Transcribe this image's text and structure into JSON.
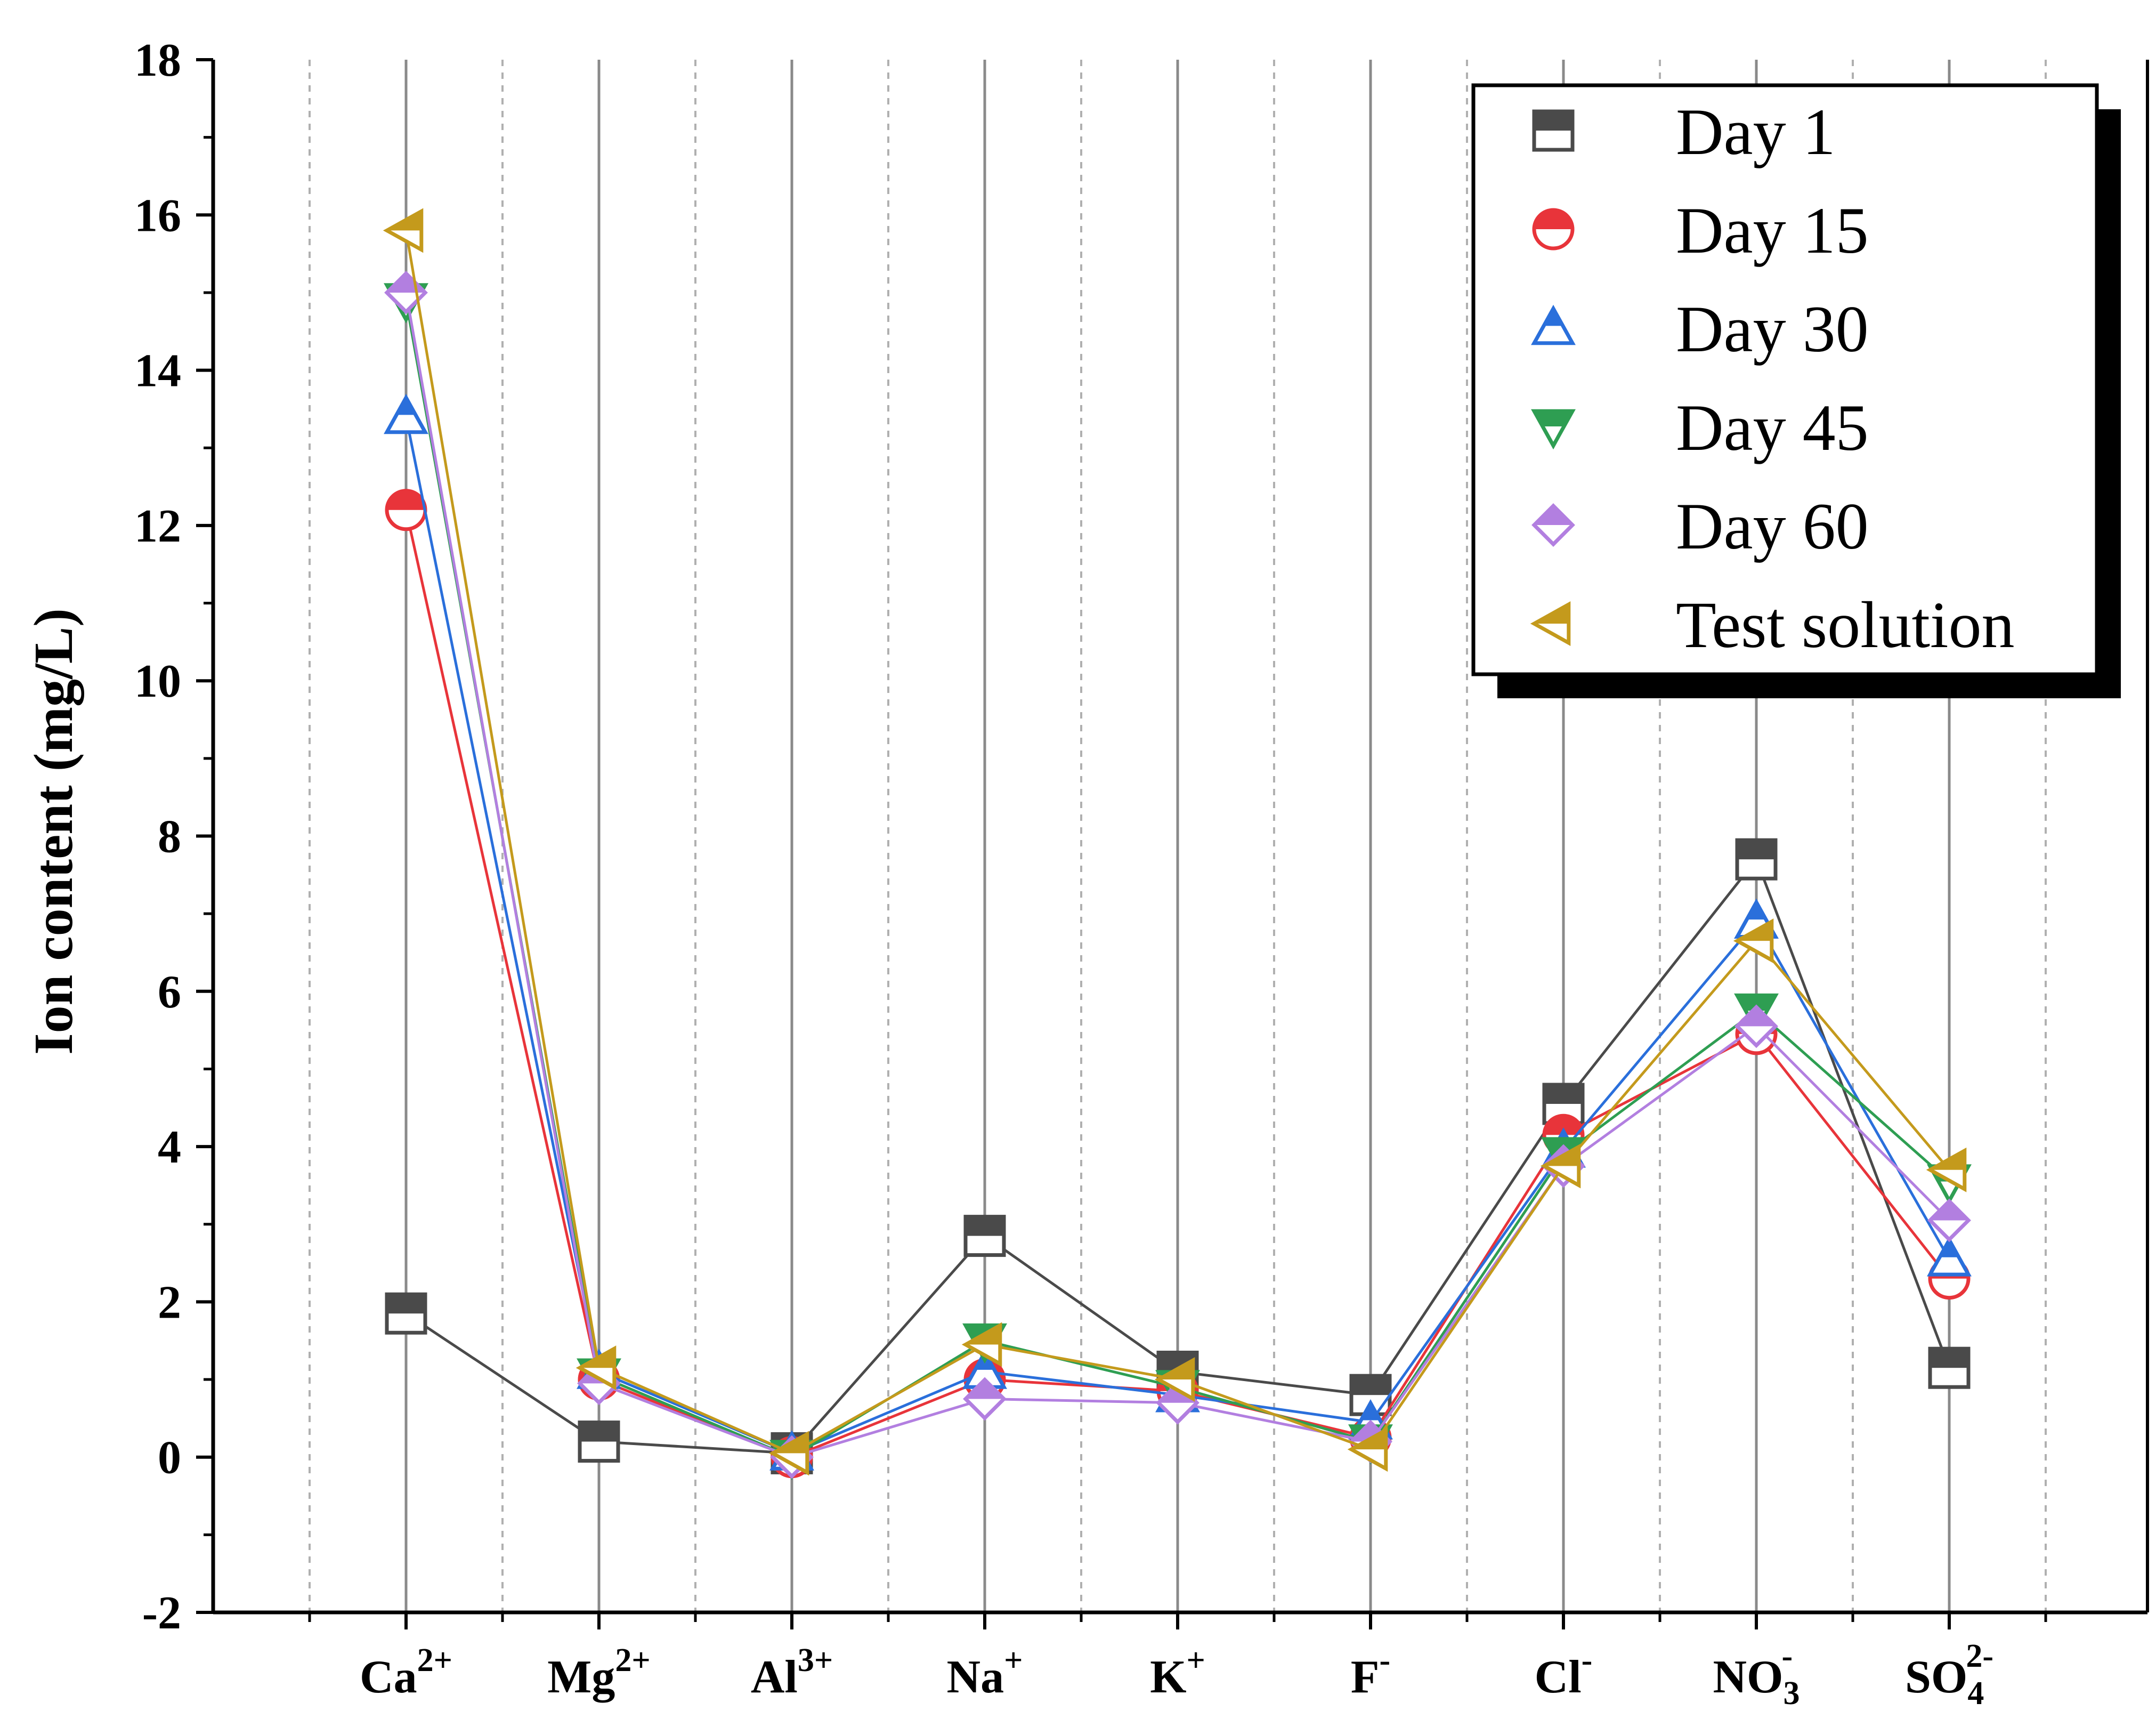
{
  "chart_data": {
    "type": "line",
    "title": "",
    "xlabel": "",
    "ylabel": "Ion content (mg/L)",
    "ylim": [
      -2,
      18
    ],
    "yticks": [
      -2,
      0,
      2,
      4,
      6,
      8,
      10,
      12,
      14,
      16,
      18
    ],
    "categories": [
      {
        "base": "Ca",
        "sub": "",
        "sup": "2+"
      },
      {
        "base": "Mg",
        "sub": "",
        "sup": "2+"
      },
      {
        "base": "Al",
        "sub": "",
        "sup": "3+"
      },
      {
        "base": "Na",
        "sub": "",
        "sup": "+"
      },
      {
        "base": "K",
        "sub": "",
        "sup": "+"
      },
      {
        "base": "F",
        "sub": "",
        "sup": "-"
      },
      {
        "base": "Cl",
        "sub": "",
        "sup": "-"
      },
      {
        "base": "NO",
        "sub": "3",
        "sup": "-"
      },
      {
        "base": "SO",
        "sub": "4",
        "sup": "2-"
      }
    ],
    "legend_position": "top-right",
    "series": [
      {
        "name": "Day 1",
        "color": "#4a4a4a",
        "marker": "square",
        "values": [
          1.85,
          0.2,
          0.05,
          2.85,
          1.1,
          0.8,
          4.55,
          7.7,
          1.15
        ]
      },
      {
        "name": "Day 15",
        "color": "#e8343a",
        "marker": "circle",
        "values": [
          12.2,
          1.0,
          0.0,
          1.0,
          0.85,
          0.25,
          4.15,
          5.45,
          2.3
        ]
      },
      {
        "name": "Day 30",
        "color": "#2a6fdb",
        "marker": "triangle-up",
        "values": [
          13.4,
          1.1,
          0.05,
          1.1,
          0.8,
          0.45,
          3.95,
          6.9,
          2.55
        ]
      },
      {
        "name": "Day 45",
        "color": "#2e9e52",
        "marker": "triangle-down",
        "values": [
          14.9,
          1.05,
          0.0,
          1.5,
          0.9,
          0.2,
          3.9,
          5.75,
          3.55
        ]
      },
      {
        "name": "Day 60",
        "color": "#b27fe0",
        "marker": "diamond",
        "values": [
          15.0,
          0.95,
          0.0,
          0.75,
          0.7,
          0.2,
          3.75,
          5.55,
          3.05
        ]
      },
      {
        "name": "Test solution",
        "color": "#c49a1c",
        "marker": "triangle-left",
        "values": [
          15.8,
          1.15,
          0.05,
          1.45,
          1.0,
          0.1,
          3.75,
          6.65,
          3.7
        ]
      }
    ]
  }
}
